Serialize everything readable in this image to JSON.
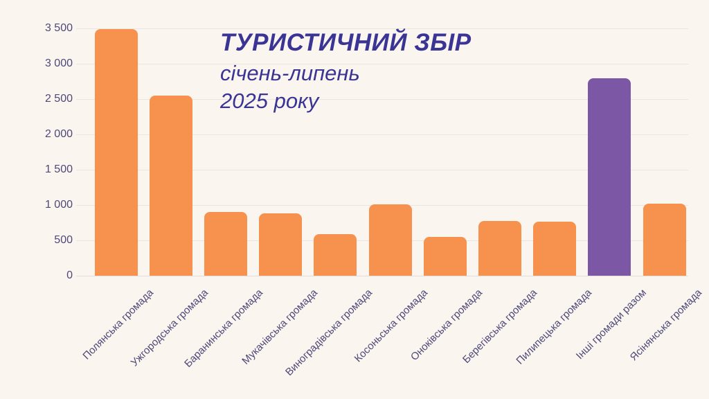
{
  "header": {
    "title": "ТУРИСТИЧНИЙ ЗБІР",
    "subtitle_line1": "січень-липень",
    "subtitle_line2": "2025 року"
  },
  "colors": {
    "background": "#FBF5F0",
    "bar_orange": "#F7914E",
    "bar_purple": "#7B57A6",
    "title_text": "#3A3494",
    "axis_text": "#4E4878",
    "gridline": "#EAE5E1"
  },
  "chart_data": {
    "type": "bar",
    "title": "ТУРИСТИЧНИЙ ЗБІР",
    "subtitle": "січень-липень 2025 року",
    "categories": [
      "Полянська громада",
      "Ужгородська громада",
      "Баранинська громада",
      "Мукачівська громада",
      "Виноградівська громада",
      "Косоньська громада",
      "Оноківська громада",
      "Берегівська громада",
      "Пилипецька громада",
      "Інші громади разом",
      "Ясінянська громада"
    ],
    "values": [
      3490,
      2550,
      905,
      880,
      585,
      1010,
      550,
      770,
      760,
      2790,
      1015
    ],
    "highlight_index": 9,
    "ylim": [
      0,
      3500
    ],
    "yticks": [
      0,
      500,
      1000,
      1500,
      2000,
      2500,
      3000,
      3500
    ],
    "ytick_labels": [
      "0",
      "500",
      "1 000",
      "1 500",
      "2 000",
      "2 500",
      "3 000",
      "3 500"
    ],
    "grid": true,
    "legend": false,
    "xlabel": "",
    "ylabel": ""
  }
}
